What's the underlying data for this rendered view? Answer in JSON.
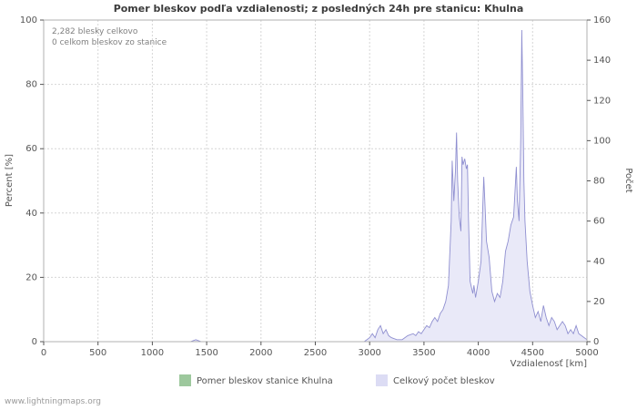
{
  "footer": {
    "watermark": "www.lightningmaps.org"
  },
  "chart_data": {
    "type": "area",
    "title": "Pomer bleskov podľa vzdialenosti; z posledných 24h pre stanicu: Khulna",
    "xlabel": "Vzdialenosť   [km]",
    "ylabel_left": "Percent   [%]",
    "ylabel_right": "Počet",
    "x_range": [
      0,
      5000
    ],
    "left_range": [
      0,
      100
    ],
    "right_range": [
      0,
      160
    ],
    "x_ticks": [
      0,
      500,
      1000,
      1500,
      2000,
      2500,
      3000,
      3500,
      4000,
      4500,
      5000
    ],
    "left_ticks": [
      0,
      20,
      40,
      60,
      80,
      100
    ],
    "right_ticks": [
      0,
      20,
      40,
      60,
      80,
      100,
      120,
      140,
      160
    ],
    "grid": true,
    "legend_position": "bottom-center",
    "annotations": [
      "2,282 blesky celkovo",
      "0 celkom bleskov zo stanice"
    ],
    "totals": {
      "total_strikes": "2,282",
      "strikes_from_station": "0"
    },
    "legend": [
      {
        "label": "Pomer bleskov stanice Khulna",
        "color": "#9dc89d"
      },
      {
        "label": "Celkový počet bleskov",
        "color": "#dcdcf4"
      }
    ],
    "series": [
      {
        "name": "Celkový počet bleskov",
        "axis": "right",
        "fill": "#e9e9f8",
        "stroke": "#8f8fd0",
        "points": [
          [
            0,
            0
          ],
          [
            1350,
            0
          ],
          [
            1400,
            1
          ],
          [
            1450,
            0
          ],
          [
            2950,
            0
          ],
          [
            3000,
            2
          ],
          [
            3025,
            4
          ],
          [
            3050,
            2
          ],
          [
            3075,
            6
          ],
          [
            3100,
            8
          ],
          [
            3125,
            4
          ],
          [
            3150,
            6
          ],
          [
            3175,
            3
          ],
          [
            3200,
            2
          ],
          [
            3250,
            1
          ],
          [
            3300,
            1
          ],
          [
            3350,
            3
          ],
          [
            3400,
            4
          ],
          [
            3425,
            3
          ],
          [
            3450,
            5
          ],
          [
            3475,
            4
          ],
          [
            3500,
            6
          ],
          [
            3525,
            8
          ],
          [
            3550,
            7
          ],
          [
            3575,
            10
          ],
          [
            3600,
            12
          ],
          [
            3625,
            10
          ],
          [
            3650,
            14
          ],
          [
            3675,
            16
          ],
          [
            3700,
            20
          ],
          [
            3725,
            28
          ],
          [
            3750,
            60
          ],
          [
            3760,
            90
          ],
          [
            3775,
            70
          ],
          [
            3790,
            85
          ],
          [
            3800,
            104
          ],
          [
            3810,
            80
          ],
          [
            3825,
            62
          ],
          [
            3840,
            55
          ],
          [
            3850,
            92
          ],
          [
            3860,
            88
          ],
          [
            3875,
            91
          ],
          [
            3890,
            86
          ],
          [
            3900,
            88
          ],
          [
            3910,
            60
          ],
          [
            3925,
            30
          ],
          [
            3950,
            24
          ],
          [
            3960,
            28
          ],
          [
            3975,
            22
          ],
          [
            4000,
            30
          ],
          [
            4025,
            40
          ],
          [
            4050,
            82
          ],
          [
            4060,
            70
          ],
          [
            4075,
            50
          ],
          [
            4100,
            42
          ],
          [
            4125,
            25
          ],
          [
            4150,
            20
          ],
          [
            4175,
            24
          ],
          [
            4200,
            22
          ],
          [
            4225,
            30
          ],
          [
            4250,
            45
          ],
          [
            4275,
            50
          ],
          [
            4300,
            58
          ],
          [
            4325,
            62
          ],
          [
            4350,
            87
          ],
          [
            4360,
            70
          ],
          [
            4375,
            60
          ],
          [
            4390,
            100
          ],
          [
            4400,
            155
          ],
          [
            4410,
            120
          ],
          [
            4420,
            80
          ],
          [
            4430,
            60
          ],
          [
            4450,
            40
          ],
          [
            4475,
            25
          ],
          [
            4500,
            18
          ],
          [
            4525,
            12
          ],
          [
            4550,
            15
          ],
          [
            4575,
            10
          ],
          [
            4600,
            18
          ],
          [
            4625,
            12
          ],
          [
            4650,
            8
          ],
          [
            4675,
            12
          ],
          [
            4700,
            10
          ],
          [
            4725,
            6
          ],
          [
            4750,
            8
          ],
          [
            4775,
            10
          ],
          [
            4800,
            8
          ],
          [
            4825,
            4
          ],
          [
            4850,
            6
          ],
          [
            4875,
            4
          ],
          [
            4900,
            8
          ],
          [
            4925,
            4
          ],
          [
            4950,
            3
          ],
          [
            4975,
            2
          ],
          [
            5000,
            1
          ]
        ]
      },
      {
        "name": "Pomer bleskov stanice Khulna",
        "axis": "left",
        "fill": "#9dc89d",
        "stroke": "#7fb27f",
        "points": []
      }
    ]
  }
}
